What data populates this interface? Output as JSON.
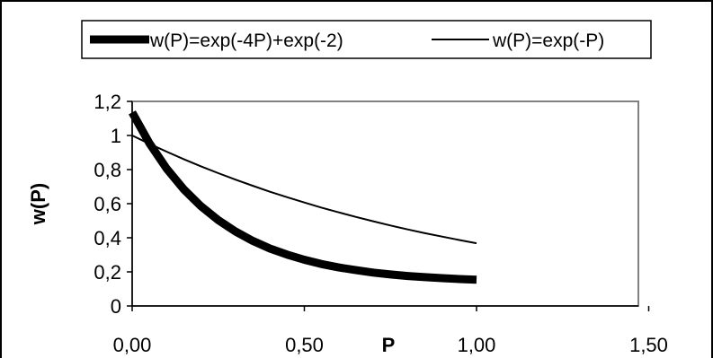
{
  "chart_data": {
    "type": "line",
    "title": "",
    "xlabel": "P",
    "ylabel": "w(P)",
    "xlim": [
      0,
      1.5
    ],
    "ylim": [
      0,
      1.2
    ],
    "x_ticks": [
      0,
      0.5,
      1.0,
      1.5
    ],
    "x_tick_labels": [
      "0,00",
      "0,50",
      "1,00",
      "1,50"
    ],
    "y_ticks": [
      0,
      0.2,
      0.4,
      0.6,
      0.8,
      1.0,
      1.2
    ],
    "y_tick_labels": [
      "0",
      "0,2",
      "0,4",
      "0,6",
      "0,8",
      "1",
      "1,2"
    ],
    "grid": false,
    "legend_position": "top",
    "series": [
      {
        "name": "w(P)=exp(-4P)+exp(-2)",
        "style": "thick",
        "x": [
          0,
          0.05,
          0.1,
          0.15,
          0.2,
          0.25,
          0.3,
          0.35,
          0.4,
          0.45,
          0.5,
          0.55,
          0.6,
          0.65,
          0.7,
          0.75,
          0.8,
          0.85,
          0.9,
          0.95,
          1.0
        ],
        "y": [
          1.135,
          0.954,
          0.806,
          0.684,
          0.585,
          0.503,
          0.437,
          0.382,
          0.337,
          0.301,
          0.271,
          0.246,
          0.226,
          0.21,
          0.196,
          0.185,
          0.176,
          0.169,
          0.163,
          0.158,
          0.154
        ]
      },
      {
        "name": "w(P)=exp(-P)",
        "style": "thin",
        "x": [
          0,
          0.05,
          0.1,
          0.15,
          0.2,
          0.25,
          0.3,
          0.35,
          0.4,
          0.45,
          0.5,
          0.55,
          0.6,
          0.65,
          0.7,
          0.75,
          0.8,
          0.85,
          0.9,
          0.95,
          1.0
        ],
        "y": [
          1.0,
          0.951,
          0.905,
          0.861,
          0.819,
          0.779,
          0.741,
          0.705,
          0.67,
          0.638,
          0.607,
          0.577,
          0.549,
          0.522,
          0.497,
          0.472,
          0.449,
          0.427,
          0.407,
          0.387,
          0.368
        ]
      }
    ]
  },
  "colors": {
    "line": "#000000",
    "background": "#ffffff"
  }
}
